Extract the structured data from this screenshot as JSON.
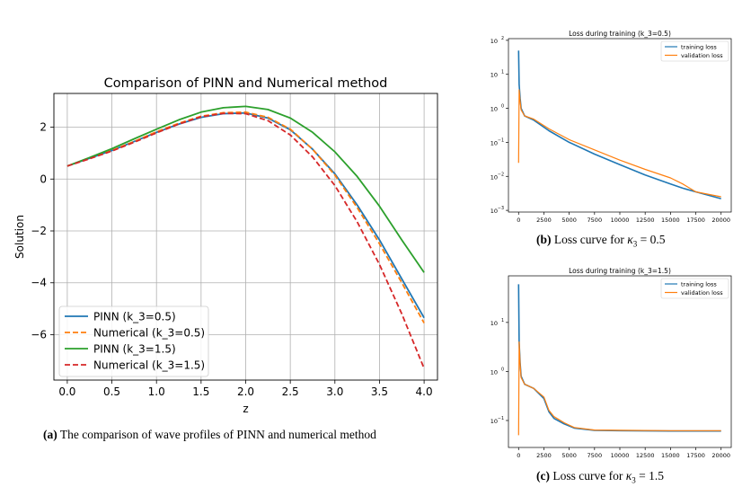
{
  "chart_data": [
    {
      "id": "a",
      "type": "line",
      "title": "Comparison of PINN and Numerical method",
      "xlabel": "z",
      "ylabel": "Solution",
      "xlim": [
        -0.15,
        4.15
      ],
      "ylim": [
        -7.75,
        3.3
      ],
      "xticks": [
        0.0,
        0.5,
        1.0,
        1.5,
        2.0,
        2.5,
        3.0,
        3.5,
        4.0
      ],
      "xtick_labels": [
        "0.0",
        "0.5",
        "1.0",
        "1.5",
        "2.0",
        "2.5",
        "3.0",
        "3.5",
        "4.0"
      ],
      "yticks": [
        2,
        0,
        -2,
        -4,
        -6
      ],
      "ytick_labels": [
        "2",
        "0",
        "−2",
        "−4",
        "−6"
      ],
      "grid": true,
      "legend_position": "lower-left",
      "series": [
        {
          "name": "PINN  (k_3=0.5)",
          "color": "#1f77b4",
          "dash": "solid",
          "x": [
            0,
            0.25,
            0.5,
            0.75,
            1.0,
            1.25,
            1.5,
            1.75,
            2.0,
            2.25,
            2.5,
            2.75,
            3.0,
            3.25,
            3.5,
            3.75,
            4.0
          ],
          "y": [
            0.5,
            0.8,
            1.1,
            1.45,
            1.8,
            2.12,
            2.38,
            2.52,
            2.55,
            2.35,
            1.9,
            1.15,
            0.2,
            -1.0,
            -2.35,
            -3.85,
            -5.35
          ]
        },
        {
          "name": "Numerical (k_3=0.5)",
          "color": "#ff7f0e",
          "dash": "dashed",
          "x": [
            0,
            0.25,
            0.5,
            0.75,
            1.0,
            1.25,
            1.5,
            1.75,
            2.0,
            2.25,
            2.5,
            2.75,
            3.0,
            3.25,
            3.5,
            3.75,
            4.0
          ],
          "y": [
            0.5,
            0.8,
            1.1,
            1.45,
            1.82,
            2.15,
            2.42,
            2.56,
            2.58,
            2.38,
            1.92,
            1.15,
            0.15,
            -1.1,
            -2.5,
            -4.0,
            -5.55
          ]
        },
        {
          "name": "PINN  (k_3=1.5)",
          "color": "#2ca02c",
          "dash": "solid",
          "x": [
            0,
            0.25,
            0.5,
            0.75,
            1.0,
            1.25,
            1.5,
            1.75,
            2.0,
            2.25,
            2.5,
            2.75,
            3.0,
            3.25,
            3.5,
            3.75,
            4.0
          ],
          "y": [
            0.5,
            0.83,
            1.17,
            1.55,
            1.92,
            2.28,
            2.58,
            2.75,
            2.8,
            2.68,
            2.35,
            1.8,
            1.05,
            0.1,
            -1.05,
            -2.35,
            -3.6
          ]
        },
        {
          "name": "Numerical (k_3=1.5)",
          "color": "#d62728",
          "dash": "dashed",
          "x": [
            0,
            0.25,
            0.5,
            0.75,
            1.0,
            1.25,
            1.5,
            1.75,
            2.0,
            2.25,
            2.5,
            2.75,
            3.0,
            3.25,
            3.5,
            3.75,
            4.0
          ],
          "y": [
            0.5,
            0.78,
            1.08,
            1.42,
            1.78,
            2.12,
            2.4,
            2.53,
            2.52,
            2.25,
            1.7,
            0.85,
            -0.25,
            -1.65,
            -3.3,
            -5.2,
            -7.3
          ]
        }
      ]
    },
    {
      "id": "b",
      "type": "line",
      "title": "Loss during training (k_3=0.5)",
      "xlim": [
        -1000,
        21000
      ],
      "ylog_range": [
        -3.05,
        2.05
      ],
      "xticks": [
        0,
        2500,
        5000,
        7500,
        10000,
        12500,
        15000,
        17500,
        20000
      ],
      "xtick_labels": [
        "0",
        "2500",
        "5000",
        "7500",
        "10000",
        "12500",
        "15000",
        "17500",
        "20000"
      ],
      "yticks_log": [
        2,
        1,
        0,
        -1,
        -2,
        -3
      ],
      "ytick_labels": [
        "10",
        "10",
        "10",
        "10",
        "10",
        "10"
      ],
      "ytick_exponents": [
        "2",
        "1",
        "0",
        "−1",
        "−2",
        "−3"
      ],
      "legend_position": "top-right",
      "series": [
        {
          "name": "training loss",
          "color": "#1f77b4",
          "x": [
            0,
            60,
            150,
            250,
            600,
            1500,
            3000,
            5000,
            7500,
            10000,
            12500,
            15000,
            16200,
            17500,
            20000
          ],
          "y": [
            50,
            5,
            2,
            1,
            0.6,
            0.45,
            0.22,
            0.1,
            0.045,
            0.022,
            0.011,
            0.006,
            0.0045,
            0.0035,
            0.0022
          ]
        },
        {
          "name": "validation loss",
          "color": "#ff7f0e",
          "x": [
            0,
            60,
            150,
            250,
            600,
            1500,
            3000,
            5000,
            7500,
            10000,
            12500,
            15000,
            16200,
            17500,
            20000
          ],
          "y": [
            0.025,
            3.5,
            1.6,
            0.9,
            0.6,
            0.48,
            0.25,
            0.12,
            0.06,
            0.03,
            0.016,
            0.009,
            0.006,
            0.0035,
            0.0025
          ]
        }
      ],
      "caption_label": "(b)",
      "caption_text": "Loss curve for ",
      "caption_symbol": "κ",
      "caption_sub": "3",
      "caption_value": " = 0.5"
    },
    {
      "id": "c",
      "type": "line",
      "title": "Loss during training (k_3=1.5)",
      "xlim": [
        -1000,
        21000
      ],
      "ylog_range": [
        -1.55,
        1.95
      ],
      "xticks": [
        0,
        2500,
        5000,
        7500,
        10000,
        12500,
        15000,
        17500,
        20000
      ],
      "xtick_labels": [
        "0",
        "2500",
        "5000",
        "7500",
        "10000",
        "12500",
        "15000",
        "17500",
        "20000"
      ],
      "yticks_log": [
        1,
        0,
        -1
      ],
      "ytick_labels": [
        "10",
        "10",
        "10"
      ],
      "ytick_exponents": [
        "1",
        "0",
        "−1"
      ],
      "legend_position": "top-right",
      "series": [
        {
          "name": "training loss",
          "color": "#1f77b4",
          "x": [
            0,
            60,
            150,
            250,
            600,
            1500,
            2500,
            3000,
            3500,
            4500,
            5500,
            7500,
            10000,
            15000,
            20000
          ],
          "y": [
            60,
            4,
            1.5,
            0.8,
            0.55,
            0.45,
            0.28,
            0.15,
            0.11,
            0.085,
            0.07,
            0.063,
            0.062,
            0.061,
            0.061
          ]
        },
        {
          "name": "validation loss",
          "color": "#ff7f0e",
          "x": [
            0,
            60,
            150,
            250,
            600,
            1500,
            2500,
            3000,
            3500,
            4500,
            5500,
            7500,
            10000,
            15000,
            20000
          ],
          "y": [
            0.05,
            4,
            1.4,
            0.75,
            0.55,
            0.45,
            0.3,
            0.16,
            0.12,
            0.09,
            0.072,
            0.064,
            0.063,
            0.062,
            0.062
          ]
        }
      ],
      "caption_label": "(c)",
      "caption_text": "Loss curve for ",
      "caption_symbol": "κ",
      "caption_sub": "3",
      "caption_value": " = 1.5"
    }
  ],
  "captions": {
    "a_label": "(a)",
    "a_text": "The comparison of wave profiles of PINN and numerical method"
  }
}
